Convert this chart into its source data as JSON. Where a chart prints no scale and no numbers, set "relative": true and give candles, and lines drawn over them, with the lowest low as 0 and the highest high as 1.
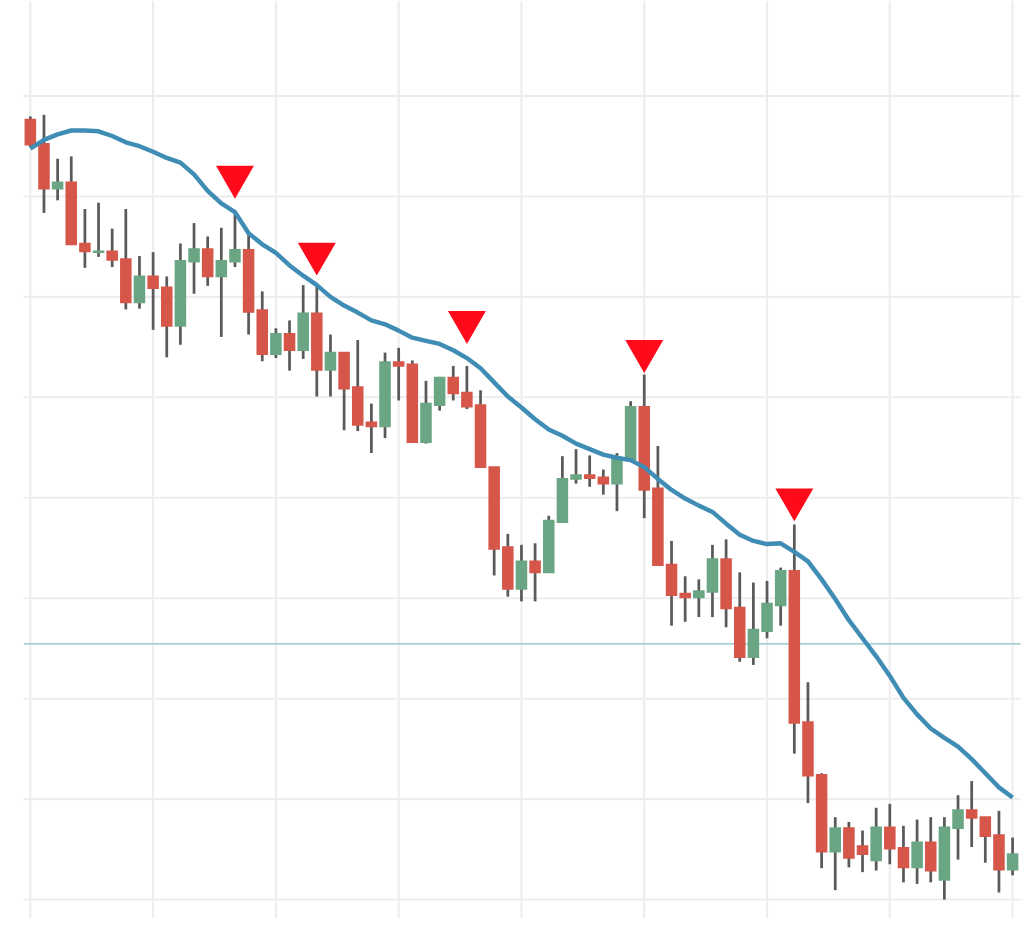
{
  "chart_data": {
    "type": "candlestick",
    "relative": true,
    "grid": true,
    "categories": [
      null,
      null,
      null,
      null,
      null,
      null,
      null,
      null,
      null,
      null,
      null,
      null,
      null,
      null,
      null,
      null,
      null,
      null,
      null,
      null,
      null,
      null,
      null,
      null,
      null,
      null,
      null,
      null,
      null,
      null,
      null,
      null,
      null,
      null,
      null,
      null,
      null,
      null,
      null,
      null,
      null,
      null,
      null,
      null,
      null,
      null,
      null,
      null,
      null,
      null,
      null,
      null,
      null,
      null,
      null,
      null,
      null,
      null,
      null,
      null,
      null,
      null,
      null,
      null,
      null,
      null,
      null,
      null,
      null,
      null,
      null,
      null,
      null
    ],
    "ohlc": [
      [
        0.994,
        0.998,
        0.959,
        0.962
      ],
      [
        0.963,
        1,
        0.875,
        0.906
      ],
      [
        0.906,
        0.944,
        0.891,
        0.914
      ],
      [
        0.914,
        0.947,
        0.835,
        0.835
      ],
      [
        0.836,
        0.88,
        0.805,
        0.826
      ],
      [
        0.825,
        0.888,
        0.819,
        0.826
      ],
      [
        0.826,
        0.855,
        0.806,
        0.815
      ],
      [
        0.816,
        0.88,
        0.752,
        0.761
      ],
      [
        0.761,
        0.82,
        0.753,
        0.794
      ],
      [
        0.794,
        0.825,
        0.726,
        0.779
      ],
      [
        0.78,
        0.794,
        0.691,
        0.731
      ],
      [
        0.731,
        0.836,
        0.707,
        0.814
      ],
      [
        0.813,
        0.862,
        0.772,
        0.829
      ],
      [
        0.829,
        0.845,
        0.782,
        0.794
      ],
      [
        0.794,
        0.856,
        0.717,
        0.814
      ],
      [
        0.813,
        0.877,
        0.806,
        0.828
      ],
      [
        0.828,
        0.85,
        0.72,
        0.749
      ],
      [
        0.751,
        0.775,
        0.686,
        0.695
      ],
      [
        0.695,
        0.728,
        0.69,
        0.721
      ],
      [
        0.721,
        0.738,
        0.674,
        0.7
      ],
      [
        0.7,
        0.783,
        0.689,
        0.747
      ],
      [
        0.747,
        0.782,
        0.641,
        0.675
      ],
      [
        0.675,
        0.72,
        0.641,
        0.697
      ],
      [
        0.697,
        0.697,
        0.598,
        0.651
      ],
      [
        0.653,
        0.713,
        0.597,
        0.605
      ],
      [
        0.608,
        0.632,
        0.569,
        0.603
      ],
      [
        0.603,
        0.697,
        0.588,
        0.685
      ],
      [
        0.685,
        0.703,
        0.636,
        0.68
      ],
      [
        0.682,
        0.687,
        0.583,
        0.583
      ],
      [
        0.583,
        0.661,
        0.581,
        0.632
      ],
      [
        0.63,
        0.666,
        0.623,
        0.665
      ],
      [
        0.665,
        0.68,
        0.636,
        0.645
      ],
      [
        0.646,
        0.68,
        0.625,
        0.628
      ],
      [
        0.63,
        0.649,
        0.551,
        0.551
      ],
      [
        0.551,
        0.551,
        0.413,
        0.447
      ],
      [
        0.449,
        0.466,
        0.386,
        0.396
      ],
      [
        0.396,
        0.452,
        0.38,
        0.431
      ],
      [
        0.431,
        0.454,
        0.38,
        0.417
      ],
      [
        0.417,
        0.489,
        0.417,
        0.483
      ],
      [
        0.481,
        0.565,
        0.481,
        0.536
      ],
      [
        0.536,
        0.574,
        0.53,
        0.541
      ],
      [
        0.541,
        0.566,
        0.526,
        0.537
      ],
      [
        0.538,
        0.548,
        0.516,
        0.53
      ],
      [
        0.53,
        0.569,
        0.495,
        0.562
      ],
      [
        0.561,
        0.635,
        0.561,
        0.628
      ],
      [
        0.628,
        0.669,
        0.486,
        0.522
      ],
      [
        0.524,
        0.578,
        0.426,
        0.426
      ],
      [
        0.427,
        0.457,
        0.349,
        0.388
      ],
      [
        0.39,
        0.412,
        0.354,
        0.385
      ],
      [
        0.385,
        0.408,
        0.36,
        0.393
      ],
      [
        0.392,
        0.452,
        0.36,
        0.434
      ],
      [
        0.434,
        0.459,
        0.347,
        0.371
      ],
      [
        0.372,
        0.417,
        0.303,
        0.309
      ],
      [
        0.309,
        0.404,
        0.299,
        0.344
      ],
      [
        0.342,
        0.406,
        0.333,
        0.377
      ],
      [
        0.375,
        0.423,
        0.349,
        0.419
      ],
      [
        0.419,
        0.478,
        0.186,
        0.225
      ],
      [
        0.226,
        0.277,
        0.123,
        0.158
      ],
      [
        0.159,
        0.161,
        0.04,
        0.061
      ],
      [
        0.061,
        0.105,
        0.012,
        0.091
      ],
      [
        0.091,
        0.099,
        0.041,
        0.053
      ],
      [
        0.068,
        0.088,
        0.035,
        0.058
      ],
      [
        0.05,
        0.117,
        0.037,
        0.092
      ],
      [
        0.092,
        0.122,
        0.045,
        0.065
      ],
      [
        0.066,
        0.094,
        0.022,
        0.041
      ],
      [
        0.041,
        0.102,
        0.02,
        0.073
      ],
      [
        0.073,
        0.105,
        0.022,
        0.037
      ],
      [
        0.025,
        0.105,
        0,
        0.092
      ],
      [
        0.091,
        0.133,
        0.051,
        0.114
      ],
      [
        0.114,
        0.151,
        0.067,
        0.104
      ],
      [
        0.105,
        0.105,
        0.047,
        0.081
      ],
      [
        0.082,
        0.113,
        0.009,
        0.038
      ],
      [
        0.038,
        0.079,
        0.031,
        0.058
      ]
    ],
    "series": [
      {
        "type": "line",
        "color": "#3f8db5",
        "values": [
          0.957,
          0.968,
          0.975,
          0.98,
          0.98,
          0.979,
          0.973,
          0.965,
          0.96,
          0.953,
          0.945,
          0.939,
          0.924,
          0.903,
          0.887,
          0.876,
          0.849,
          0.835,
          0.824,
          0.808,
          0.795,
          0.783,
          0.768,
          0.757,
          0.748,
          0.738,
          0.733,
          0.725,
          0.716,
          0.712,
          0.708,
          0.7,
          0.69,
          0.677,
          0.659,
          0.641,
          0.627,
          0.612,
          0.599,
          0.591,
          0.581,
          0.574,
          0.567,
          0.563,
          0.56,
          0.551,
          0.536,
          0.522,
          0.511,
          0.502,
          0.494,
          0.479,
          0.465,
          0.457,
          0.453,
          0.454,
          0.443,
          0.431,
          0.408,
          0.383,
          0.356,
          0.333,
          0.31,
          0.285,
          0.257,
          0.236,
          0.218,
          0.206,
          0.195,
          0.179,
          0.161,
          0.143,
          0.13
        ]
      },
      {
        "type": "scatter",
        "color": "#ff0a1a",
        "marker": "triangle",
        "values": [
          null,
          null,
          null,
          null,
          null,
          null,
          null,
          null,
          null,
          null,
          null,
          null,
          null,
          null,
          null,
          0.921,
          null,
          null,
          null,
          null,
          null,
          0.823,
          null,
          null,
          null,
          null,
          null,
          null,
          null,
          null,
          null,
          null,
          0.736,
          null,
          null,
          null,
          null,
          null,
          null,
          null,
          null,
          null,
          null,
          null,
          null,
          0.699,
          null,
          null,
          null,
          null,
          null,
          null,
          null,
          null,
          null,
          null,
          0.51,
          null,
          null,
          null,
          null,
          null,
          null,
          null,
          null,
          null,
          null,
          null,
          null,
          null,
          null,
          null,
          null
        ]
      }
    ],
    "ref_lines": [
      {
        "axis": "y",
        "value": 0.326,
        "color": "#a9d3d3"
      }
    ]
  }
}
